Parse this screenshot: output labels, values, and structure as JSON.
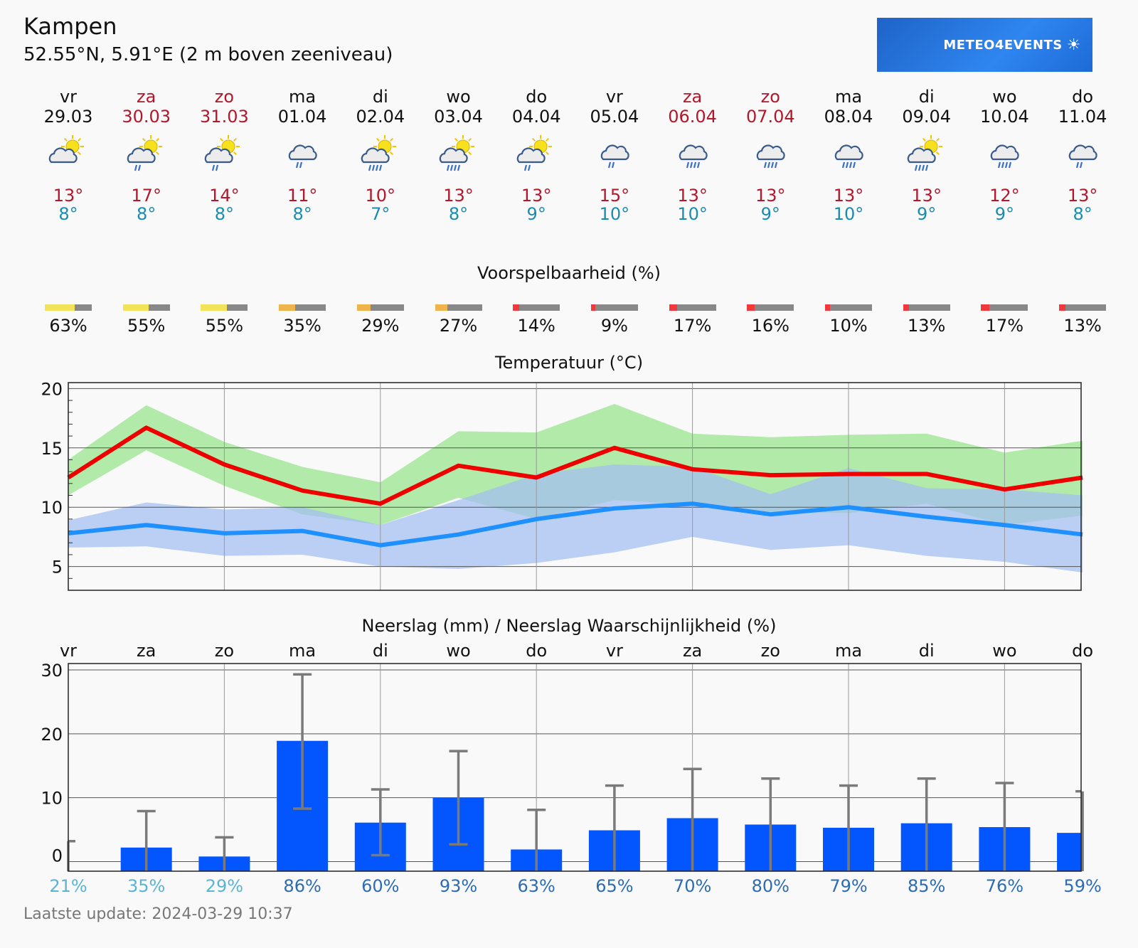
{
  "header": {
    "title": "Kampen",
    "coords": "52.55°N, 5.91°E (2 m boven zeeniveau)",
    "logo_text": "METEO4EVENTS"
  },
  "days": [
    {
      "name": "vr",
      "date": "29.03",
      "weekend": false,
      "icon": "sun-cloud-icon",
      "tmax": "13°",
      "tmin": "8°"
    },
    {
      "name": "za",
      "date": "30.03",
      "weekend": true,
      "icon": "sun-cloud-rain-icon",
      "tmax": "17°",
      "tmin": "8°"
    },
    {
      "name": "zo",
      "date": "31.03",
      "weekend": true,
      "icon": "sun-cloud-rain-icon",
      "tmax": "14°",
      "tmin": "8°"
    },
    {
      "name": "ma",
      "date": "01.04",
      "weekend": false,
      "icon": "cloud-rain-icon",
      "tmax": "11°",
      "tmin": "8°"
    },
    {
      "name": "di",
      "date": "02.04",
      "weekend": false,
      "icon": "sun-cloud-heavy-rain-icon",
      "tmax": "10°",
      "tmin": "7°"
    },
    {
      "name": "wo",
      "date": "03.04",
      "weekend": false,
      "icon": "sun-cloud-heavy-rain-icon",
      "tmax": "13°",
      "tmin": "8°"
    },
    {
      "name": "do",
      "date": "04.04",
      "weekend": false,
      "icon": "sun-cloud-rain-icon",
      "tmax": "13°",
      "tmin": "9°"
    },
    {
      "name": "vr",
      "date": "05.04",
      "weekend": false,
      "icon": "cloud-rain-icon",
      "tmax": "15°",
      "tmin": "10°"
    },
    {
      "name": "za",
      "date": "06.04",
      "weekend": true,
      "icon": "cloud-heavy-rain-icon",
      "tmax": "13°",
      "tmin": "10°"
    },
    {
      "name": "zo",
      "date": "07.04",
      "weekend": true,
      "icon": "cloud-heavy-rain-icon",
      "tmax": "13°",
      "tmin": "9°"
    },
    {
      "name": "ma",
      "date": "08.04",
      "weekend": false,
      "icon": "cloud-heavy-rain-icon",
      "tmax": "13°",
      "tmin": "10°"
    },
    {
      "name": "di",
      "date": "09.04",
      "weekend": false,
      "icon": "sun-cloud-heavy-rain-icon",
      "tmax": "13°",
      "tmin": "9°"
    },
    {
      "name": "wo",
      "date": "10.04",
      "weekend": false,
      "icon": "cloud-heavy-rain-icon",
      "tmax": "12°",
      "tmin": "9°"
    },
    {
      "name": "do",
      "date": "11.04",
      "weekend": false,
      "icon": "cloud-rain-icon",
      "tmax": "13°",
      "tmin": "8°"
    }
  ],
  "predictability": {
    "title": "Voorspelbaarheid (%)",
    "values": [
      63,
      55,
      55,
      35,
      29,
      27,
      14,
      9,
      17,
      16,
      10,
      13,
      17,
      13
    ],
    "labels": [
      "63%",
      "55%",
      "55%",
      "35%",
      "29%",
      "27%",
      "14%",
      "9%",
      "17%",
      "16%",
      "10%",
      "13%",
      "17%",
      "13%"
    ],
    "colors": {
      "high": "#f3e35a",
      "mid": "#f0b44c",
      "low": "#f0393c",
      "rest": "#888888"
    }
  },
  "chart_data": [
    {
      "type": "line",
      "title": "Temperatuur (°C)",
      "categories": [
        "29.03",
        "30.03",
        "31.03",
        "01.04",
        "02.04",
        "03.04",
        "04.04",
        "05.04",
        "06.04",
        "07.04",
        "08.04",
        "09.04",
        "10.04",
        "11.04"
      ],
      "ylim": [
        3,
        20.5
      ],
      "yticks": [
        5,
        10,
        15,
        20
      ],
      "grid": true,
      "series": [
        {
          "color": "#ee0000",
          "values": [
            12.5,
            16.7,
            13.6,
            11.4,
            10.3,
            13.5,
            12.5,
            15.0,
            13.2,
            12.7,
            12.8,
            12.8,
            11.5,
            12.5
          ]
        },
        {
          "color": "#1e90ff",
          "values": [
            7.8,
            8.5,
            7.8,
            8.0,
            6.8,
            7.7,
            9.0,
            9.9,
            10.3,
            9.4,
            10.0,
            9.2,
            8.5,
            7.7
          ]
        }
      ],
      "bands": [
        {
          "color": "#a8e8a0",
          "upper": [
            14.0,
            18.6,
            15.5,
            13.4,
            12.1,
            16.4,
            16.3,
            18.7,
            16.2,
            15.9,
            16.1,
            16.2,
            14.6,
            15.6
          ],
          "lower": [
            11.0,
            14.8,
            11.8,
            9.4,
            8.5,
            10.8,
            9.0,
            10.6,
            10.2,
            9.6,
            9.5,
            10.3,
            8.5,
            9.3
          ]
        },
        {
          "color": "#a6bff2",
          "upper": [
            8.9,
            10.4,
            9.8,
            10.0,
            8.5,
            10.6,
            12.8,
            13.6,
            13.4,
            11.1,
            13.3,
            11.6,
            11.5,
            11.0
          ],
          "lower": [
            6.6,
            6.7,
            5.9,
            6.0,
            5.0,
            4.8,
            5.3,
            6.2,
            7.5,
            6.4,
            6.8,
            5.9,
            5.4,
            4.5
          ]
        }
      ]
    },
    {
      "type": "bar",
      "title": "Neerslag (mm) / Neerslag Waarschijnlijkheid (%)",
      "categories": [
        "vr",
        "za",
        "zo",
        "ma",
        "di",
        "wo",
        "do",
        "vr",
        "za",
        "zo",
        "ma",
        "di",
        "wo",
        "do"
      ],
      "values": [
        0,
        2.2,
        0.8,
        18.9,
        6.1,
        10.0,
        1.9,
        4.9,
        6.8,
        5.8,
        5.3,
        6.0,
        5.4,
        4.5
      ],
      "error_high": [
        3.2,
        7.9,
        3.8,
        29.3,
        11.3,
        17.3,
        8.1,
        11.9,
        14.5,
        13.0,
        11.9,
        13.0,
        12.3,
        11.0
      ],
      "error_low": [
        0,
        0,
        0,
        8.3,
        1.0,
        2.7,
        0,
        0,
        0,
        0,
        0,
        0,
        0,
        0
      ],
      "ylim": [
        -1.5,
        31
      ],
      "yticks": [
        0,
        10,
        20,
        30
      ],
      "bar_color": "#0356fd",
      "error_color": "#7a7a7a",
      "probability_labels": [
        "21%",
        "35%",
        "29%",
        "86%",
        "60%",
        "93%",
        "63%",
        "65%",
        "70%",
        "80%",
        "79%",
        "85%",
        "76%",
        "59%"
      ],
      "probability_values": [
        21,
        35,
        29,
        86,
        60,
        93,
        63,
        65,
        70,
        80,
        79,
        85,
        76,
        59
      ]
    }
  ],
  "footer": {
    "update": "Laatste update: 2024-03-29 10:37"
  }
}
